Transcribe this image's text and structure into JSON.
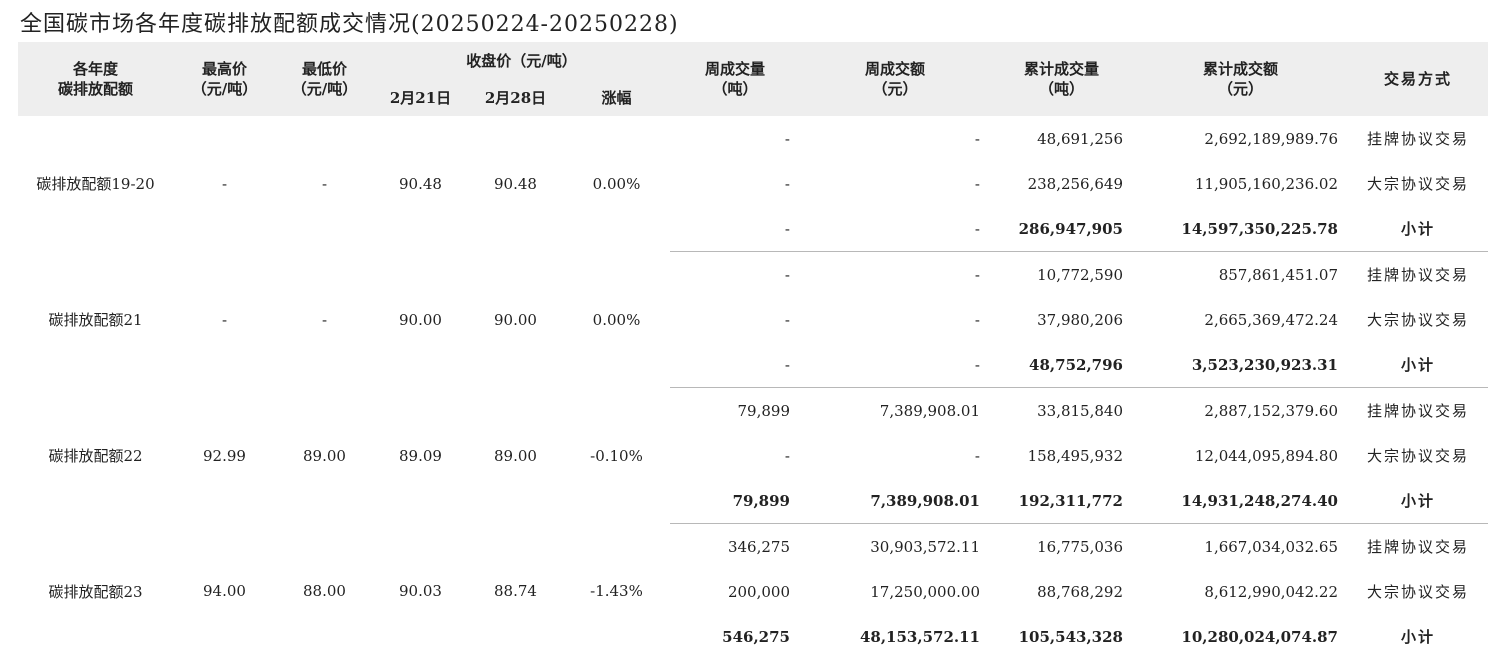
{
  "title": "全国碳市场各年度碳排放配额成交情况(20250224-20250228)",
  "headers": {
    "col1": "各年度\n碳排放配额",
    "high": "最高价\n（元/吨）",
    "low": "最低价\n（元/吨）",
    "close_group": "收盘价（元/吨）",
    "close_d1": "2月21日",
    "close_d2": "2月28日",
    "change": "涨幅",
    "week_vol": "周成交量\n（吨）",
    "week_amt": "周成交额\n（元）",
    "cum_vol": "累计成交量\n（吨）",
    "cum_amt": "累计成交额\n（元）",
    "method": "交易方式"
  },
  "groups": [
    {
      "name": "碳排放配额19-20",
      "high": "-",
      "low": "-",
      "close_d1": "90.48",
      "close_d2": "90.48",
      "change": "0.00%",
      "rows": [
        {
          "week_vol": "-",
          "week_amt": "-",
          "cum_vol": "48,691,256",
          "cum_amt": "2,692,189,989.76",
          "method": "挂牌协议交易"
        },
        {
          "week_vol": "-",
          "week_amt": "-",
          "cum_vol": "238,256,649",
          "cum_amt": "11,905,160,236.02",
          "method": "大宗协议交易"
        },
        {
          "week_vol": "-",
          "week_amt": "-",
          "cum_vol": "286,947,905",
          "cum_amt": "14,597,350,225.78",
          "method": "小计"
        }
      ]
    },
    {
      "name": "碳排放配额21",
      "high": "-",
      "low": "-",
      "close_d1": "90.00",
      "close_d2": "90.00",
      "change": "0.00%",
      "rows": [
        {
          "week_vol": "-",
          "week_amt": "-",
          "cum_vol": "10,772,590",
          "cum_amt": "857,861,451.07",
          "method": "挂牌协议交易"
        },
        {
          "week_vol": "-",
          "week_amt": "-",
          "cum_vol": "37,980,206",
          "cum_amt": "2,665,369,472.24",
          "method": "大宗协议交易"
        },
        {
          "week_vol": "-",
          "week_amt": "-",
          "cum_vol": "48,752,796",
          "cum_amt": "3,523,230,923.31",
          "method": "小计"
        }
      ]
    },
    {
      "name": "碳排放配额22",
      "high": "92.99",
      "low": "89.00",
      "close_d1": "89.09",
      "close_d2": "89.00",
      "change": "-0.10%",
      "rows": [
        {
          "week_vol": "79,899",
          "week_amt": "7,389,908.01",
          "cum_vol": "33,815,840",
          "cum_amt": "2,887,152,379.60",
          "method": "挂牌协议交易"
        },
        {
          "week_vol": "-",
          "week_amt": "-",
          "cum_vol": "158,495,932",
          "cum_amt": "12,044,095,894.80",
          "method": "大宗协议交易"
        },
        {
          "week_vol": "79,899",
          "week_amt": "7,389,908.01",
          "cum_vol": "192,311,772",
          "cum_amt": "14,931,248,274.40",
          "method": "小计"
        }
      ]
    },
    {
      "name": "碳排放配额23",
      "high": "94.00",
      "low": "88.00",
      "close_d1": "90.03",
      "close_d2": "88.74",
      "change": "-1.43%",
      "rows": [
        {
          "week_vol": "346,275",
          "week_amt": "30,903,572.11",
          "cum_vol": "16,775,036",
          "cum_amt": "1,667,034,032.65",
          "method": "挂牌协议交易"
        },
        {
          "week_vol": "200,000",
          "week_amt": "17,250,000.00",
          "cum_vol": "88,768,292",
          "cum_amt": "8,612,990,042.22",
          "method": "大宗协议交易"
        },
        {
          "week_vol": "546,275",
          "week_amt": "48,153,572.11",
          "cum_vol": "105,543,328",
          "cum_amt": "10,280,024,074.87",
          "method": "小计"
        }
      ]
    }
  ]
}
